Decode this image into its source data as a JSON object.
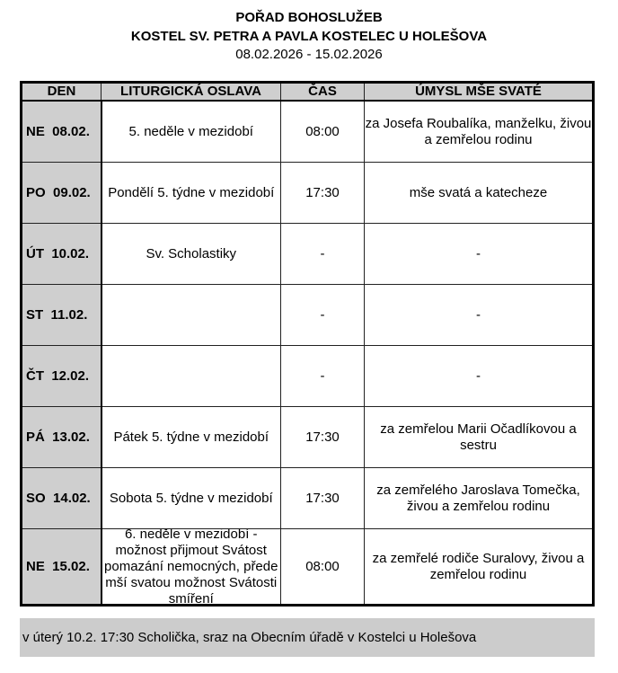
{
  "header": {
    "title": "POŘAD BOHOSLUŽEB",
    "church": "KOSTEL SV. PETRA A PAVLA KOSTELEC U HOLEŠOVA",
    "date_range": "08.02.2026 - 15.02.2026"
  },
  "table": {
    "columns": [
      "DEN",
      "LITURGICKÁ OSLAVA",
      "ČAS",
      "ÚMYSL MŠE SVATÉ"
    ],
    "rows": [
      {
        "day": "NE  08.02.",
        "celebration": "5. neděle v mezidobí",
        "time": "08:00",
        "intention": "za Josefa Roubalíka, manželku, živou a zemřelou rodinu"
      },
      {
        "day": "PO  09.02.",
        "celebration": "Pondělí 5. týdne v mezidobí",
        "time": "17:30",
        "intention": "mše svatá a katecheze"
      },
      {
        "day": "ÚT  10.02.",
        "celebration": "Sv. Scholastiky",
        "time": "-",
        "intention": "-"
      },
      {
        "day": "ST  11.02.",
        "celebration": "",
        "time": "-",
        "intention": "-"
      },
      {
        "day": "ČT  12.02.",
        "celebration": "",
        "time": "-",
        "intention": "-"
      },
      {
        "day": "PÁ  13.02.",
        "celebration": "Pátek 5. týdne v mezidobí",
        "time": "17:30",
        "intention": "za zemřelou Marii Očadlíkovou a sestru"
      },
      {
        "day": "SO  14.02.",
        "celebration": "Sobota 5. týdne v mezidobí",
        "time": "17:30",
        "intention": "za zemřelého Jaroslava Tomečka, živou a zemřelou rodinu"
      },
      {
        "day": "NE  15.02.",
        "celebration": "6. neděle v mezidobí - možnost přijmout Svátost pomazání nemocných, přede mší svatou možnost Svátosti smíření",
        "time": "08:00",
        "intention": "za zemřelé rodiče Suralovy, živou a zemřelou rodinu"
      }
    ]
  },
  "note": "v úterý 10.2. 17:30 Scholička, sraz na Obecním úřadě v Kostelci u Holešova"
}
